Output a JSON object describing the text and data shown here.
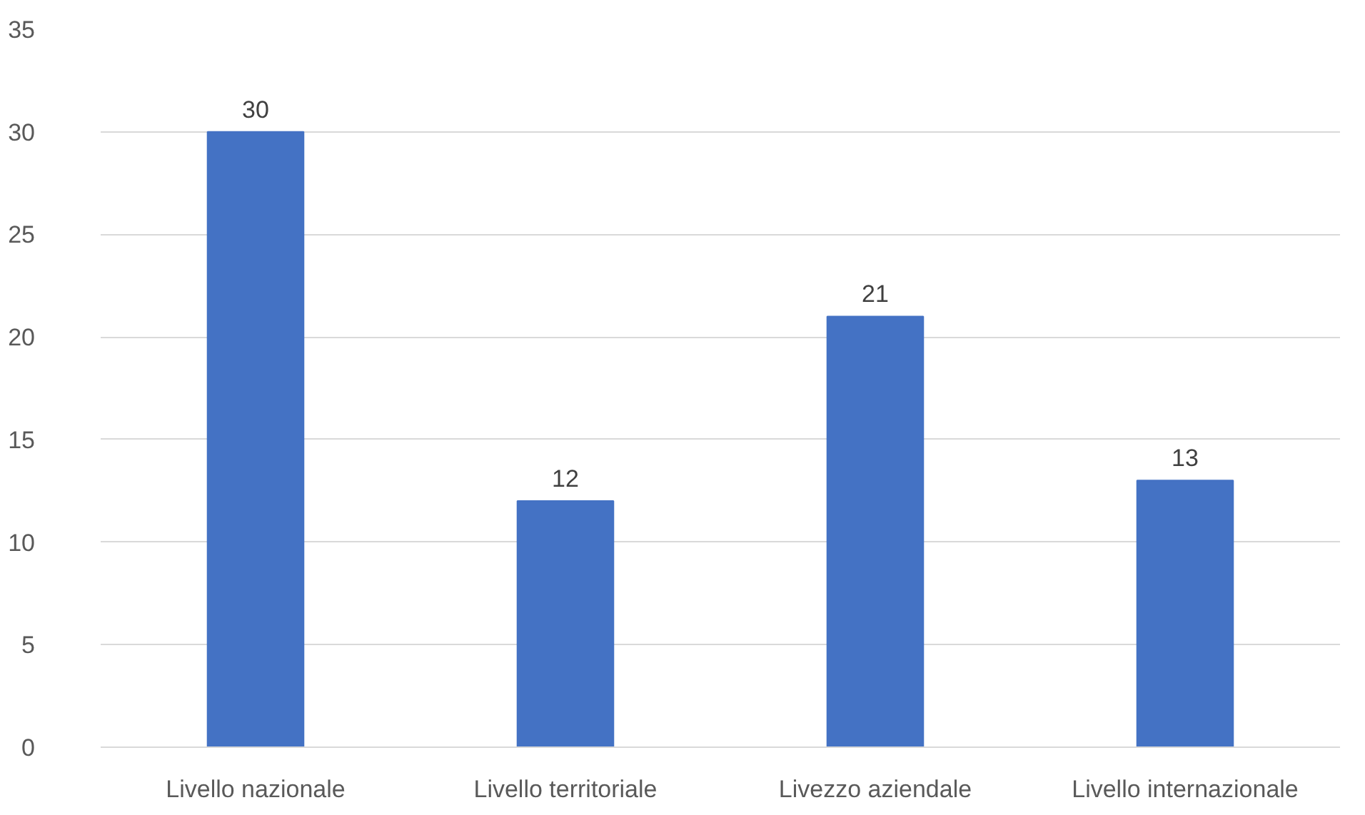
{
  "chart_data": {
    "type": "bar",
    "categories": [
      "Livello nazionale",
      "Livello territoriale",
      "Livezzo aziendale",
      "Livello internazionale"
    ],
    "values": [
      30,
      12,
      21,
      13
    ],
    "color": "#4472c4",
    "ylim": [
      0,
      35
    ],
    "yticks": [
      0,
      5,
      10,
      15,
      20,
      25,
      30,
      35
    ],
    "grid": "y",
    "data_labels": true
  }
}
